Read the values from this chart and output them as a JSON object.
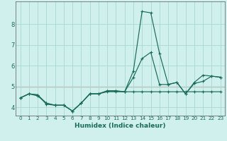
{
  "title": "",
  "xlabel": "Humidex (Indice chaleur)",
  "bg_color": "#cff0ec",
  "grid_color": "#aad8d0",
  "line_color": "#1a6b5a",
  "spine_color": "#555555",
  "red_line_color": "#cc4444",
  "xlim": [
    -0.5,
    23.5
  ],
  "ylim": [
    3.6,
    9.1
  ],
  "xticks": [
    0,
    1,
    2,
    3,
    4,
    5,
    6,
    7,
    8,
    9,
    10,
    11,
    12,
    13,
    14,
    15,
    16,
    17,
    18,
    19,
    20,
    21,
    22,
    23
  ],
  "yticks": [
    4,
    5,
    6,
    7,
    8
  ],
  "series": [
    [
      4.45,
      4.65,
      4.6,
      4.2,
      4.1,
      4.1,
      3.82,
      4.2,
      4.65,
      4.65,
      4.8,
      4.8,
      4.75,
      5.75,
      8.62,
      8.55,
      6.6,
      5.1,
      5.2,
      4.65,
      5.2,
      5.55,
      5.5,
      5.45
    ],
    [
      4.45,
      4.65,
      4.55,
      4.2,
      4.1,
      4.1,
      3.82,
      4.2,
      4.65,
      4.65,
      4.78,
      4.78,
      4.75,
      5.45,
      6.35,
      6.65,
      5.1,
      5.1,
      5.2,
      4.65,
      5.15,
      5.25,
      5.5,
      5.45
    ],
    [
      4.45,
      4.65,
      4.6,
      4.15,
      4.1,
      4.1,
      3.82,
      4.2,
      4.65,
      4.65,
      4.75,
      4.75,
      4.75,
      4.75,
      4.75,
      4.75,
      4.75,
      4.75,
      4.75,
      4.75,
      4.75,
      4.75,
      4.75,
      4.75
    ]
  ],
  "red_line_y": 5.0,
  "xlabel_fontsize": 6.5,
  "tick_fontsize": 5.2,
  "ytick_fontsize": 6.0
}
